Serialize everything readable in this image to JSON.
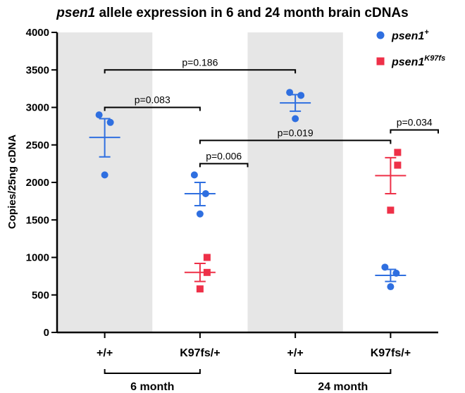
{
  "chart_data": {
    "type": "scatter",
    "title": {
      "gene": "psen1",
      "rest": " allele expression in 6 and 24 month brain cDNAs"
    },
    "ylabel": "Copies/25ng cDNA",
    "ylim": [
      0,
      4000
    ],
    "yticks": [
      0,
      500,
      1000,
      1500,
      2000,
      2500,
      3000,
      3500,
      4000
    ],
    "categories": [
      "+/+",
      "K97fs/+",
      "+/+",
      "K97fs/+"
    ],
    "groups": [
      {
        "label": "6 month",
        "categories": [
          0,
          1
        ]
      },
      {
        "label": "24 month",
        "categories": [
          2,
          3
        ]
      }
    ],
    "shaded_columns": [
      0,
      2
    ],
    "legend": [
      {
        "base": "psen1",
        "sup": "+",
        "color": "#2f6fe0",
        "marker": "circle"
      },
      {
        "base": "psen1",
        "sup": "K97fs",
        "color": "#ee3048",
        "marker": "square"
      }
    ],
    "series": [
      {
        "marker": "circle",
        "color": "#2f6fe0",
        "points": [
          {
            "cat": 0,
            "values": [
              2900,
              2800,
              2100
            ],
            "mean": 2600,
            "sem_low": 2340,
            "sem_high": 2850
          },
          {
            "cat": 1,
            "values": [
              2100,
              1850,
              1580
            ],
            "mean": 1850,
            "sem_low": 1690,
            "sem_high": 2000
          },
          {
            "cat": 2,
            "values": [
              3200,
              3160,
              2850
            ],
            "mean": 3060,
            "sem_low": 2950,
            "sem_high": 3170
          },
          {
            "cat": 3,
            "values": [
              870,
              790,
              610
            ],
            "mean": 760,
            "sem_low": 680,
            "sem_high": 840
          }
        ]
      },
      {
        "marker": "square",
        "color": "#ee3048",
        "points": [
          {
            "cat": 1,
            "values": [
              1000,
              800,
              580
            ],
            "mean": 800,
            "sem_low": 680,
            "sem_high": 920
          },
          {
            "cat": 3,
            "values": [
              2400,
              2230,
              1630
            ],
            "mean": 2090,
            "sem_low": 1850,
            "sem_high": 2330
          }
        ]
      }
    ],
    "comparisons": [
      {
        "label": "p=0.186",
        "from_cat": 0,
        "to_cat": 2,
        "y": 3500
      },
      {
        "label": "p=0.083",
        "from_cat": 0,
        "to_cat": 1,
        "y": 3000
      },
      {
        "label": "p=0.006",
        "from_cat": 1,
        "to_cat": 1.5,
        "y": 2250
      },
      {
        "label": "p=0.019",
        "from_cat": 1,
        "to_cat": 3,
        "y": 2560
      },
      {
        "label": "p=0.034",
        "from_cat": 3,
        "to_cat": 3.5,
        "y": 2700
      }
    ]
  }
}
